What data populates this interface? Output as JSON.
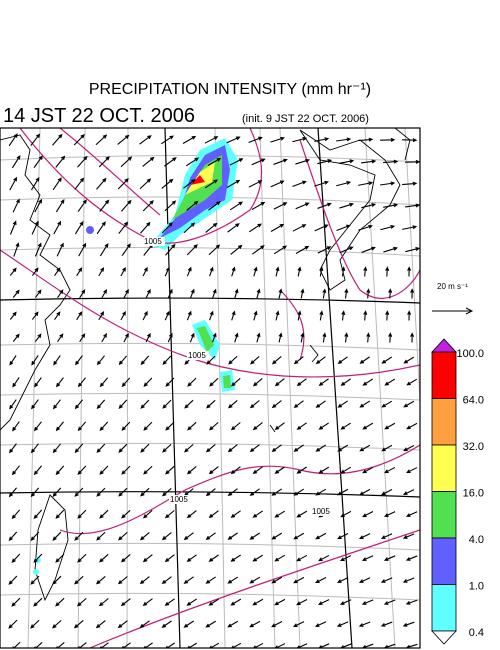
{
  "header": {
    "title": "PRECIPITATION INTENSITY (mm hr⁻¹)",
    "valid_time": "14 JST 22 OCT. 2006",
    "init_time": "(init. 9 JST 22 OCT. 2006)"
  },
  "wind_scale": {
    "label": "20 m s⁻¹"
  },
  "colorbar": {
    "labels": [
      "100.0",
      "64.0",
      "32.0",
      "16.0",
      "4.0",
      "1.0",
      "0.4"
    ],
    "colors": [
      "#ff0000",
      "#ffa040",
      "#ffff50",
      "#50e050",
      "#6060ff",
      "#60ffff"
    ],
    "over_color": "#c020e0",
    "under_color": "#ffffff"
  },
  "isobar_labels": [
    "1005",
    "1005",
    "1005",
    "1005"
  ]
}
